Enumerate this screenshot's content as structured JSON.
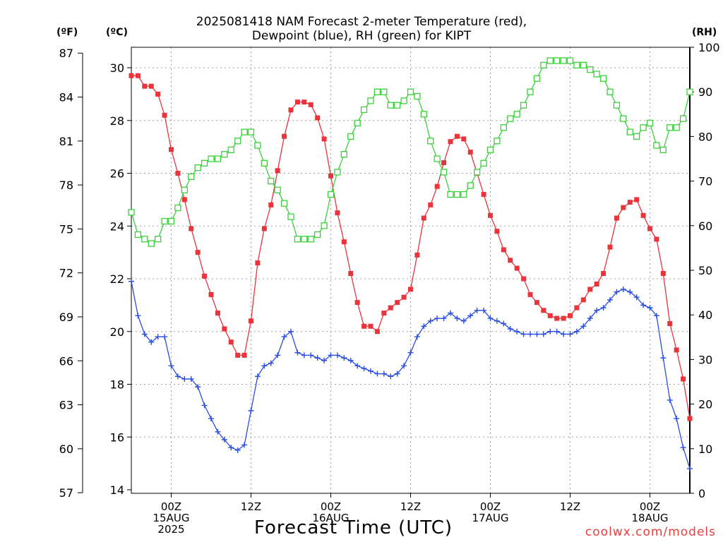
{
  "header": {
    "title_line1": "2025081418 NAM Forecast 2-meter Temperature (red),",
    "title_line2": "Dewpoint (blue), RH (green) for KIPT"
  },
  "axes": {
    "f_unit": "(ºF)",
    "c_unit": "(ºC)",
    "rh_unit": "(RH)",
    "xlabel": "Forecast Time (UTC)"
  },
  "credit": "coolwx.com/models",
  "colors": {
    "temperature": "#e8343a",
    "dewpoint": "#2a4ee0",
    "rh": "#3ad13a",
    "grid": "#a0a0a0"
  },
  "chart_data": {
    "type": "line",
    "title": "2025081418 NAM Forecast 2-meter Temperature (red), Dewpoint (blue), RH (green) for KIPT",
    "xlabel": "Forecast Time (UTC)",
    "x_units": "hours from 2025-08-14 18Z",
    "x_range": [
      0,
      84
    ],
    "x_ticks": [
      {
        "hour": 6,
        "lines": [
          "00Z",
          "15AUG",
          "2025"
        ]
      },
      {
        "hour": 18,
        "lines": [
          "12Z"
        ]
      },
      {
        "hour": 30,
        "lines": [
          "00Z",
          "16AUG"
        ]
      },
      {
        "hour": 42,
        "lines": [
          "12Z"
        ]
      },
      {
        "hour": 54,
        "lines": [
          "00Z",
          "17AUG"
        ]
      },
      {
        "hour": 66,
        "lines": [
          "12Z"
        ]
      },
      {
        "hour": 78,
        "lines": [
          "00Z",
          "18AUG"
        ]
      }
    ],
    "y_celsius": {
      "range": [
        14,
        30
      ],
      "ticks": [
        14,
        16,
        18,
        20,
        22,
        24,
        26,
        28,
        30
      ]
    },
    "y_fahrenheit": {
      "ticks": [
        57,
        60,
        63,
        66,
        69,
        72,
        75,
        78,
        81,
        84,
        87
      ]
    },
    "y_rh": {
      "range": [
        0,
        100
      ],
      "ticks": [
        0,
        10,
        20,
        30,
        40,
        50,
        60,
        70,
        80,
        90,
        100
      ]
    },
    "grid": true,
    "series": [
      {
        "name": "Temperature",
        "units": "°C",
        "marker": "filled-square",
        "values": [
          29.7,
          29.7,
          29.3,
          29.3,
          29.0,
          28.2,
          26.9,
          26.0,
          25.0,
          23.9,
          23.0,
          22.1,
          21.4,
          20.7,
          20.1,
          19.6,
          19.1,
          19.1,
          20.4,
          22.6,
          23.9,
          24.8,
          26.1,
          27.4,
          28.4,
          28.7,
          28.7,
          28.6,
          28.1,
          27.3,
          25.9,
          24.5,
          23.4,
          22.2,
          21.1,
          20.2,
          20.2,
          20.0,
          20.7,
          20.9,
          21.1,
          21.3,
          21.6,
          22.9,
          24.3,
          24.8,
          25.5,
          26.4,
          27.2,
          27.4,
          27.3,
          26.8,
          26.0,
          25.2,
          24.4,
          23.8,
          23.1,
          22.7,
          22.4,
          22.0,
          21.4,
          21.1,
          20.8,
          20.6,
          20.5,
          20.5,
          20.6,
          20.9,
          21.2,
          21.6,
          21.8,
          22.2,
          23.2,
          24.3,
          24.7,
          24.9,
          25.0,
          24.4,
          23.9,
          23.5,
          22.2,
          20.3,
          19.3,
          18.2,
          16.7
        ]
      },
      {
        "name": "Dewpoint",
        "units": "°C",
        "marker": "plus",
        "values": [
          21.9,
          20.6,
          19.9,
          19.6,
          19.8,
          19.8,
          18.7,
          18.3,
          18.2,
          18.2,
          17.9,
          17.2,
          16.7,
          16.2,
          15.9,
          15.6,
          15.5,
          15.7,
          17.0,
          18.3,
          18.7,
          18.8,
          19.1,
          19.8,
          20.0,
          19.2,
          19.1,
          19.1,
          19.0,
          18.9,
          19.1,
          19.1,
          19.0,
          18.9,
          18.7,
          18.6,
          18.5,
          18.4,
          18.4,
          18.3,
          18.4,
          18.7,
          19.2,
          19.8,
          20.2,
          20.4,
          20.5,
          20.5,
          20.7,
          20.5,
          20.4,
          20.6,
          20.8,
          20.8,
          20.5,
          20.4,
          20.3,
          20.1,
          20.0,
          19.9,
          19.9,
          19.9,
          19.9,
          20.0,
          20.0,
          19.9,
          19.9,
          20.0,
          20.2,
          20.5,
          20.8,
          20.9,
          21.2,
          21.5,
          21.6,
          21.5,
          21.3,
          21.0,
          20.9,
          20.6,
          19.0,
          17.4,
          16.7,
          15.6,
          14.8
        ]
      },
      {
        "name": "RH",
        "units": "%",
        "marker": "open-square",
        "values": [
          63,
          58,
          57,
          56,
          57,
          61,
          61,
          64,
          68,
          71,
          73,
          74,
          75,
          75,
          76,
          77,
          79,
          81,
          81,
          78,
          74,
          70,
          68,
          65,
          62,
          57,
          57,
          57,
          58,
          60,
          67,
          72,
          76,
          80,
          83,
          86,
          88,
          90,
          90,
          87,
          87,
          88,
          90,
          89,
          85,
          79,
          75,
          72,
          67,
          67,
          67,
          69,
          72,
          74,
          77,
          79,
          82,
          84,
          85,
          87,
          90,
          93,
          96,
          97,
          97,
          97,
          97,
          96,
          96,
          95,
          94,
          93,
          90,
          87,
          84,
          81,
          80,
          82,
          83,
          78,
          77,
          82,
          82,
          84,
          90
        ]
      }
    ]
  }
}
